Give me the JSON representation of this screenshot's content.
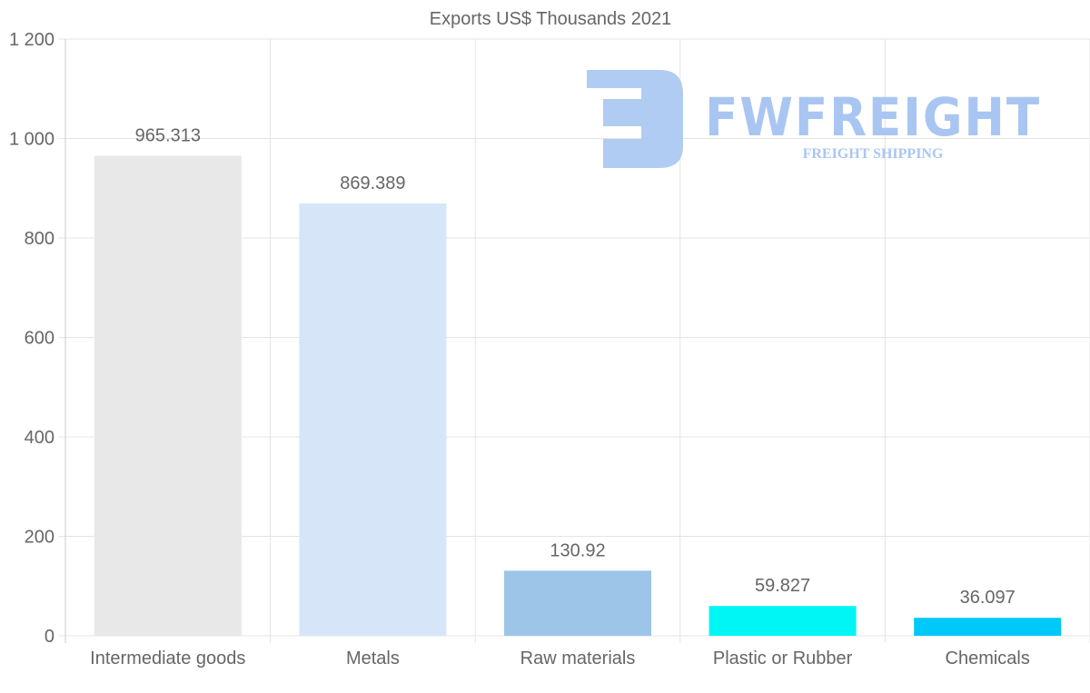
{
  "chart_data": {
    "type": "bar",
    "title": "Exports US$ Thousands 2021",
    "categories": [
      "Intermediate goods",
      "Metals",
      "Raw materials",
      "Plastic or Rubber",
      "Chemicals"
    ],
    "values": [
      965.313,
      869.389,
      130.92,
      59.827,
      36.097
    ],
    "value_labels": [
      "965.313",
      "869.389",
      "130.92",
      "59.827",
      "36.097"
    ],
    "colors": [
      "#e8e8e8",
      "#d6e6f8",
      "#9dc5e8",
      "#00f5f5",
      "#00c8f8"
    ],
    "ylim": [
      0,
      1200
    ],
    "yticks": [
      0,
      200,
      400,
      600,
      800,
      1000,
      1200
    ],
    "ytick_labels": [
      "0",
      "200",
      "400",
      "600",
      "800",
      "1 000",
      "1 200"
    ],
    "xlabel": "",
    "ylabel": "",
    "grid": true,
    "legend": "none"
  },
  "watermark": {
    "name": "FWFREIGHT",
    "tagline": "FREIGHT SHIPPING",
    "color": "#a9c6f2"
  }
}
